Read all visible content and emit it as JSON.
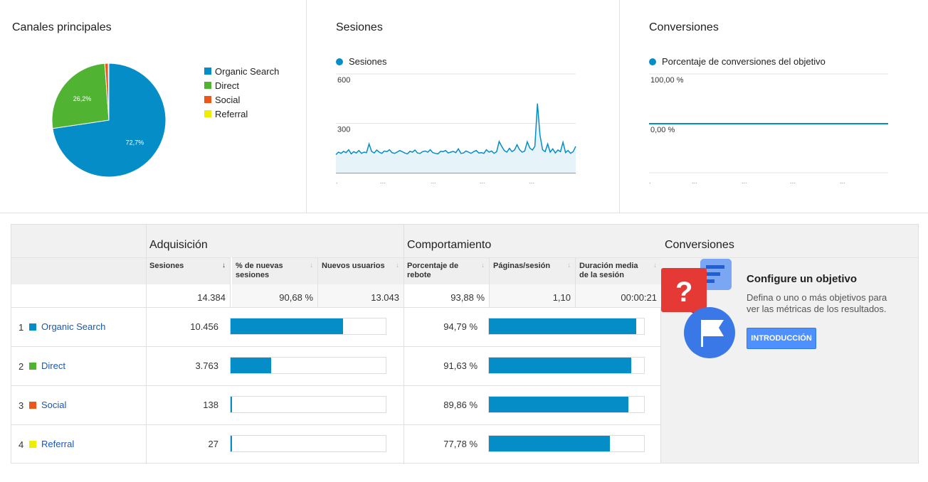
{
  "channels_panel": {
    "title": "Canales principales",
    "slices": [
      {
        "name": "Organic Search",
        "value": 72.7,
        "label": "72,7%",
        "color": "#058dc7"
      },
      {
        "name": "Direct",
        "value": 26.2,
        "label": "26,2%",
        "color": "#50b432"
      },
      {
        "name": "Social",
        "value": 0.96,
        "label": "",
        "color": "#ed561b"
      },
      {
        "name": "Referral",
        "value": 0.19,
        "label": "",
        "color": "#edef00"
      }
    ]
  },
  "sessions_panel": {
    "title": "Sesiones",
    "legend": "Sesiones",
    "y_ticks": [
      "600",
      "300"
    ],
    "x_ticks": [
      ".",
      "...",
      "...",
      "...",
      "..."
    ]
  },
  "conversions_panel": {
    "title": "Conversiones",
    "legend": "Porcentaje de conversiones del objetivo",
    "y_ticks": [
      "100,00 %",
      "0,00 %"
    ],
    "x_ticks": [
      ".",
      "...",
      "...",
      "...",
      "..."
    ]
  },
  "chart_data": [
    {
      "type": "pie",
      "title": "Canales principales",
      "categories": [
        "Organic Search",
        "Direct",
        "Social",
        "Referral"
      ],
      "values": [
        72.7,
        26.2,
        0.96,
        0.19
      ]
    },
    {
      "type": "area",
      "title": "Sesiones",
      "series": [
        {
          "name": "Sesiones",
          "values": [
            110,
            125,
            118,
            130,
            122,
            140,
            115,
            128,
            120,
            135,
            118,
            125,
            122,
            175,
            130,
            120,
            138,
            125,
            118,
            132,
            128,
            140,
            122,
            118,
            125,
            135,
            128,
            120,
            115,
            130,
            125,
            138,
            120,
            118,
            128,
            132,
            125,
            140,
            122,
            118,
            115,
            130,
            128,
            135,
            120,
            125,
            130,
            122,
            145,
            118,
            120,
            132,
            125,
            118,
            128,
            135,
            120,
            122,
            118,
            140,
            125,
            132,
            118,
            128,
            190,
            160,
            135,
            125,
            148,
            128,
            138,
            170,
            140,
            125,
            132,
            188,
            150,
            138,
            160,
            420,
            228,
            140,
            128,
            175,
            125,
            145,
            120,
            138,
            128,
            185,
            122,
            135,
            118,
            128,
            160
          ]
        }
      ],
      "ylim": [
        0,
        600
      ],
      "y_ticks": [
        600,
        300
      ]
    },
    {
      "type": "line",
      "title": "Conversiones",
      "series": [
        {
          "name": "Porcentaje de conversiones del objetivo",
          "values": [
            0,
            0
          ]
        }
      ],
      "ylim": [
        0,
        100
      ]
    }
  ],
  "table": {
    "groups": {
      "acquisition": "Adquisición",
      "behavior": "Comportamiento"
    },
    "columns": {
      "sessions": "Sesiones",
      "new_sessions": "% de nuevas sesiones",
      "new_users": "Nuevos usuarios",
      "bounce": "Porcentaje de rebote",
      "pages": "Páginas/sesión",
      "duration": "Duración media de la sesión"
    },
    "totals": {
      "sessions": "14.384",
      "new_sessions": "90,68 %",
      "new_users": "13.043",
      "bounce": "93,88 %",
      "pages": "1,10",
      "duration": "00:00:21"
    },
    "rows": [
      {
        "rank": "1",
        "name": "Organic Search",
        "color": "#058dc7",
        "sessions": "10.456",
        "sessions_share": 0.727,
        "bounce": "94,79 %",
        "bounce_share": 0.9479
      },
      {
        "rank": "2",
        "name": "Direct",
        "color": "#50b432",
        "sessions": "3.763",
        "sessions_share": 0.262,
        "bounce": "91,63 %",
        "bounce_share": 0.9163
      },
      {
        "rank": "3",
        "name": "Social",
        "color": "#ed561b",
        "sessions": "138",
        "sessions_share": 0.0096,
        "bounce": "89,86 %",
        "bounce_share": 0.8986
      },
      {
        "rank": "4",
        "name": "Referral",
        "color": "#edef00",
        "sessions": "27",
        "sessions_share": 0.0019,
        "bounce": "77,78 %",
        "bounce_share": 0.7778
      }
    ]
  },
  "goal": {
    "section_title": "Conversiones",
    "heading": "Configure un objetivo",
    "description": "Defina o uno o más objetivos para ver las métricas de los resultados.",
    "button": "INTRODUCCIÓN",
    "question_mark": "?"
  }
}
